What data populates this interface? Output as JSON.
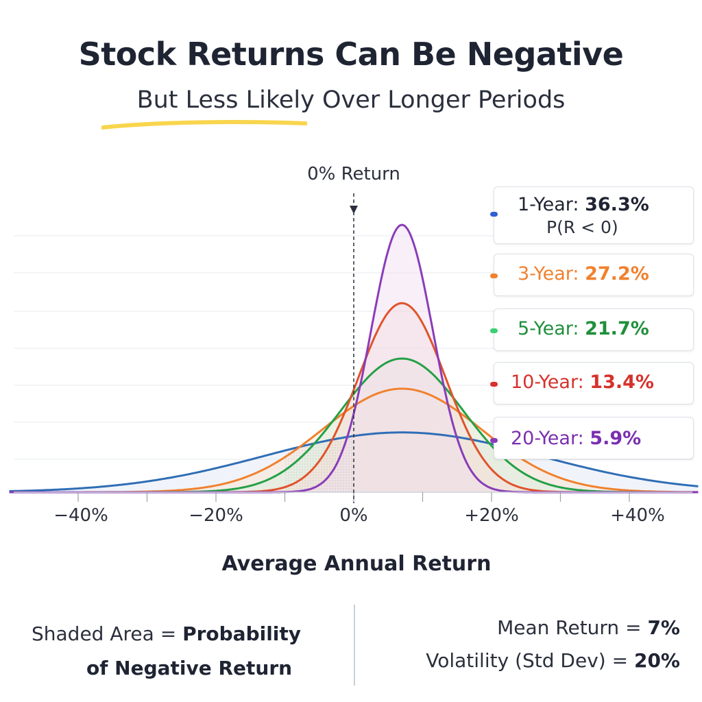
{
  "header": {
    "title": "Stock Returns Can Be Negative",
    "subtitle": "But Less Likely Over Longer Periods"
  },
  "colors": {
    "highlight": "#f8d54d",
    "1y": "#2f6db5",
    "3y": "#f0812e",
    "5y": "#24a046",
    "10y": "#e0532b",
    "20y": "#8a3cb8",
    "grid": "#e6e9ee",
    "axis": "#cfd4da"
  },
  "chart_data": {
    "type": "area",
    "title": "Stock Returns Can Be Negative",
    "subtitle": "But Less Likely Over Longer Periods",
    "xlabel": "Average Annual Return",
    "ylabel": "",
    "xlim": [
      -46,
      46
    ],
    "x_ticks": [
      "−40%",
      "−20%",
      "0%",
      "+20%",
      "+40%"
    ],
    "x_tick_values": [
      -40,
      -20,
      0,
      20,
      40
    ],
    "reference_line": {
      "x": 0,
      "label": "0% Return"
    },
    "mean_return": 7,
    "volatility": 20,
    "series": [
      {
        "name": "1-Year",
        "years": 1,
        "prob_label": "36.3%",
        "color_key": "1y"
      },
      {
        "name": "3-Year",
        "years": 3,
        "prob_label": "27.2%",
        "color_key": "3y"
      },
      {
        "name": "5-Year",
        "years": 5,
        "prob_label": "21.7%",
        "color_key": "5y"
      },
      {
        "name": "10-Year",
        "years": 10,
        "prob_label": "13.4%",
        "color_key": "10y"
      },
      {
        "name": "20-Year",
        "years": 20,
        "prob_label": "5.9%",
        "color_key": "20y"
      }
    ],
    "grid": true,
    "legend_placement": "right"
  },
  "legend": {
    "items": [
      {
        "label": "1-Year:",
        "value": "36.3%",
        "sub": "P(R < 0)"
      },
      {
        "label": "3-Year:",
        "value": "27.2%"
      },
      {
        "label": "5-Year:",
        "value": "21.7%"
      },
      {
        "label": "10-Year:",
        "value": "13.4%"
      },
      {
        "label": "20-Year:",
        "value": "5.9%"
      }
    ]
  },
  "annotations": {
    "zero_label": "0% Return"
  },
  "axis": {
    "title": "Average Annual Return"
  },
  "footer": {
    "left_prefix": "Shaded Area =",
    "left_bold_1": "Probability",
    "left_bold_2": "of Negative Return",
    "mean_label": "Mean Return =",
    "mean_value": "7%",
    "vol_label": "Volatility (Std Dev) =",
    "vol_value": "20%"
  }
}
